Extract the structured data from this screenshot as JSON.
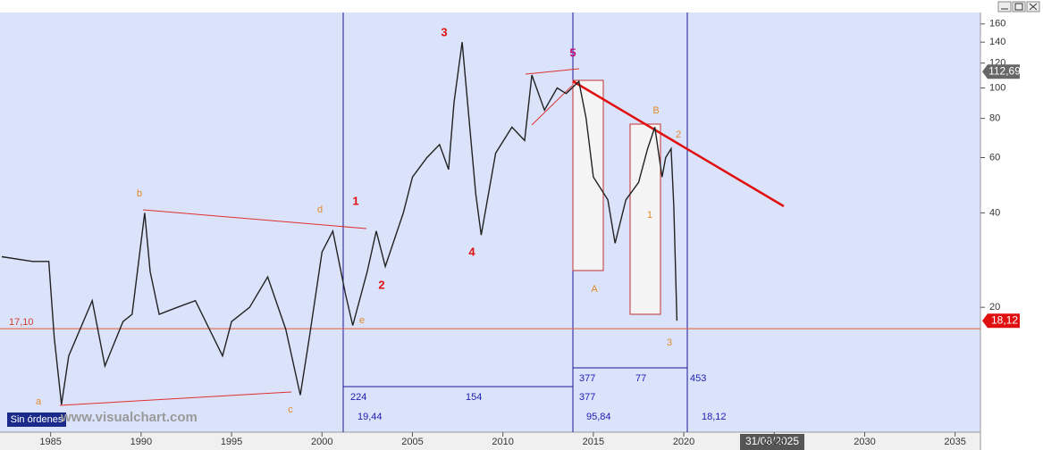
{
  "chart_data": {
    "type": "line",
    "log_scale": true,
    "background": "#dbe3fb",
    "xlim": [
      1982.2,
      2036.4
    ],
    "ylim": [
      8,
      174
    ],
    "xticks": [
      1985,
      1990,
      1995,
      2000,
      2005,
      2010,
      2015,
      2020,
      2025,
      2030,
      2035
    ],
    "yticks": [
      20,
      40,
      60,
      80,
      100,
      120,
      140,
      160
    ],
    "series": [
      {
        "color": "#222222",
        "x": [
          1982.3,
          1984.0,
          1984.9,
          1985.2,
          1985.6,
          1986.0,
          1987.3,
          1988.0,
          1989.0,
          1989.5,
          1990.2,
          1990.5,
          1991.0,
          1992.0,
          1993.0,
          1994.5,
          1995.0,
          1996.0,
          1997.0,
          1998.0,
          1998.8,
          1999.3,
          2000.0,
          2000.6,
          2001.3,
          2001.7,
          2002.5,
          2003.0,
          2003.5,
          2004.5,
          2005.0,
          2005.8,
          2006.5,
          2007.0,
          2007.3,
          2007.75,
          2008.5,
          2008.8,
          2009.6,
          2010.5,
          2011.2,
          2011.6,
          2012.3,
          2013.0,
          2013.5,
          2014.2,
          2014.6,
          2015.0,
          2015.8,
          2016.2,
          2016.8,
          2017.5,
          2018.0,
          2018.4,
          2018.8,
          2019.0,
          2019.3,
          2019.45,
          2019.62
        ],
        "values": [
          29,
          28,
          28,
          16,
          9.8,
          14,
          21,
          13,
          18,
          19,
          40,
          26,
          19,
          20,
          21,
          14,
          18,
          20,
          25,
          17,
          10.5,
          16,
          30,
          35,
          22,
          17.5,
          26,
          35,
          27,
          40,
          52,
          60,
          66,
          55,
          90,
          140,
          46,
          34,
          62,
          75,
          68,
          110,
          85,
          100,
          96,
          105,
          80,
          52,
          44,
          32,
          44,
          50,
          64,
          75,
          52,
          60,
          64,
          42,
          18.12
        ]
      }
    ],
    "hline": {
      "value": 17.1,
      "label": "17,10"
    },
    "price_tags": [
      {
        "value": 112.69,
        "label": "112,69"
      },
      {
        "value": 18.12,
        "label": "18,12"
      }
    ],
    "annotations": [
      {
        "text": "a",
        "color": "#e08a2a"
      },
      {
        "text": "b",
        "color": "#e08a2a"
      },
      {
        "text": "c",
        "color": "#e08a2a"
      },
      {
        "text": "d",
        "color": "#e08a2a"
      },
      {
        "text": "e",
        "color": "#e08a2a"
      },
      {
        "text": "1",
        "color": "#e01010"
      },
      {
        "text": "2",
        "color": "#e01010"
      },
      {
        "text": "3",
        "color": "#e01010"
      },
      {
        "text": "4",
        "color": "#e01010"
      },
      {
        "text": "5",
        "color": "#c0107a"
      },
      {
        "text": "A",
        "color": "#e08a2a"
      },
      {
        "text": "B",
        "color": "#e08a2a"
      },
      {
        "text": "1",
        "color": "#e08a2a"
      },
      {
        "text": "2",
        "color": "#e08a2a"
      },
      {
        "text": "3",
        "color": "#e08a2a"
      },
      {
        "text": "224",
        "color": "#2020b0"
      },
      {
        "text": "154",
        "color": "#2020b0"
      },
      {
        "text": "377",
        "color": "#2020b0"
      },
      {
        "text": "377",
        "color": "#2020b0"
      },
      {
        "text": "77",
        "color": "#2020b0"
      },
      {
        "text": "453",
        "color": "#2020b0"
      },
      {
        "text": "19,44",
        "color": "#2020b0"
      },
      {
        "text": "95,84",
        "color": "#2020b0"
      },
      {
        "text": "18,12",
        "color": "#2020b0"
      }
    ],
    "status": "Sin órdenes",
    "watermark": "www.visualchart.com",
    "cursor_date": "31/08/2025"
  }
}
